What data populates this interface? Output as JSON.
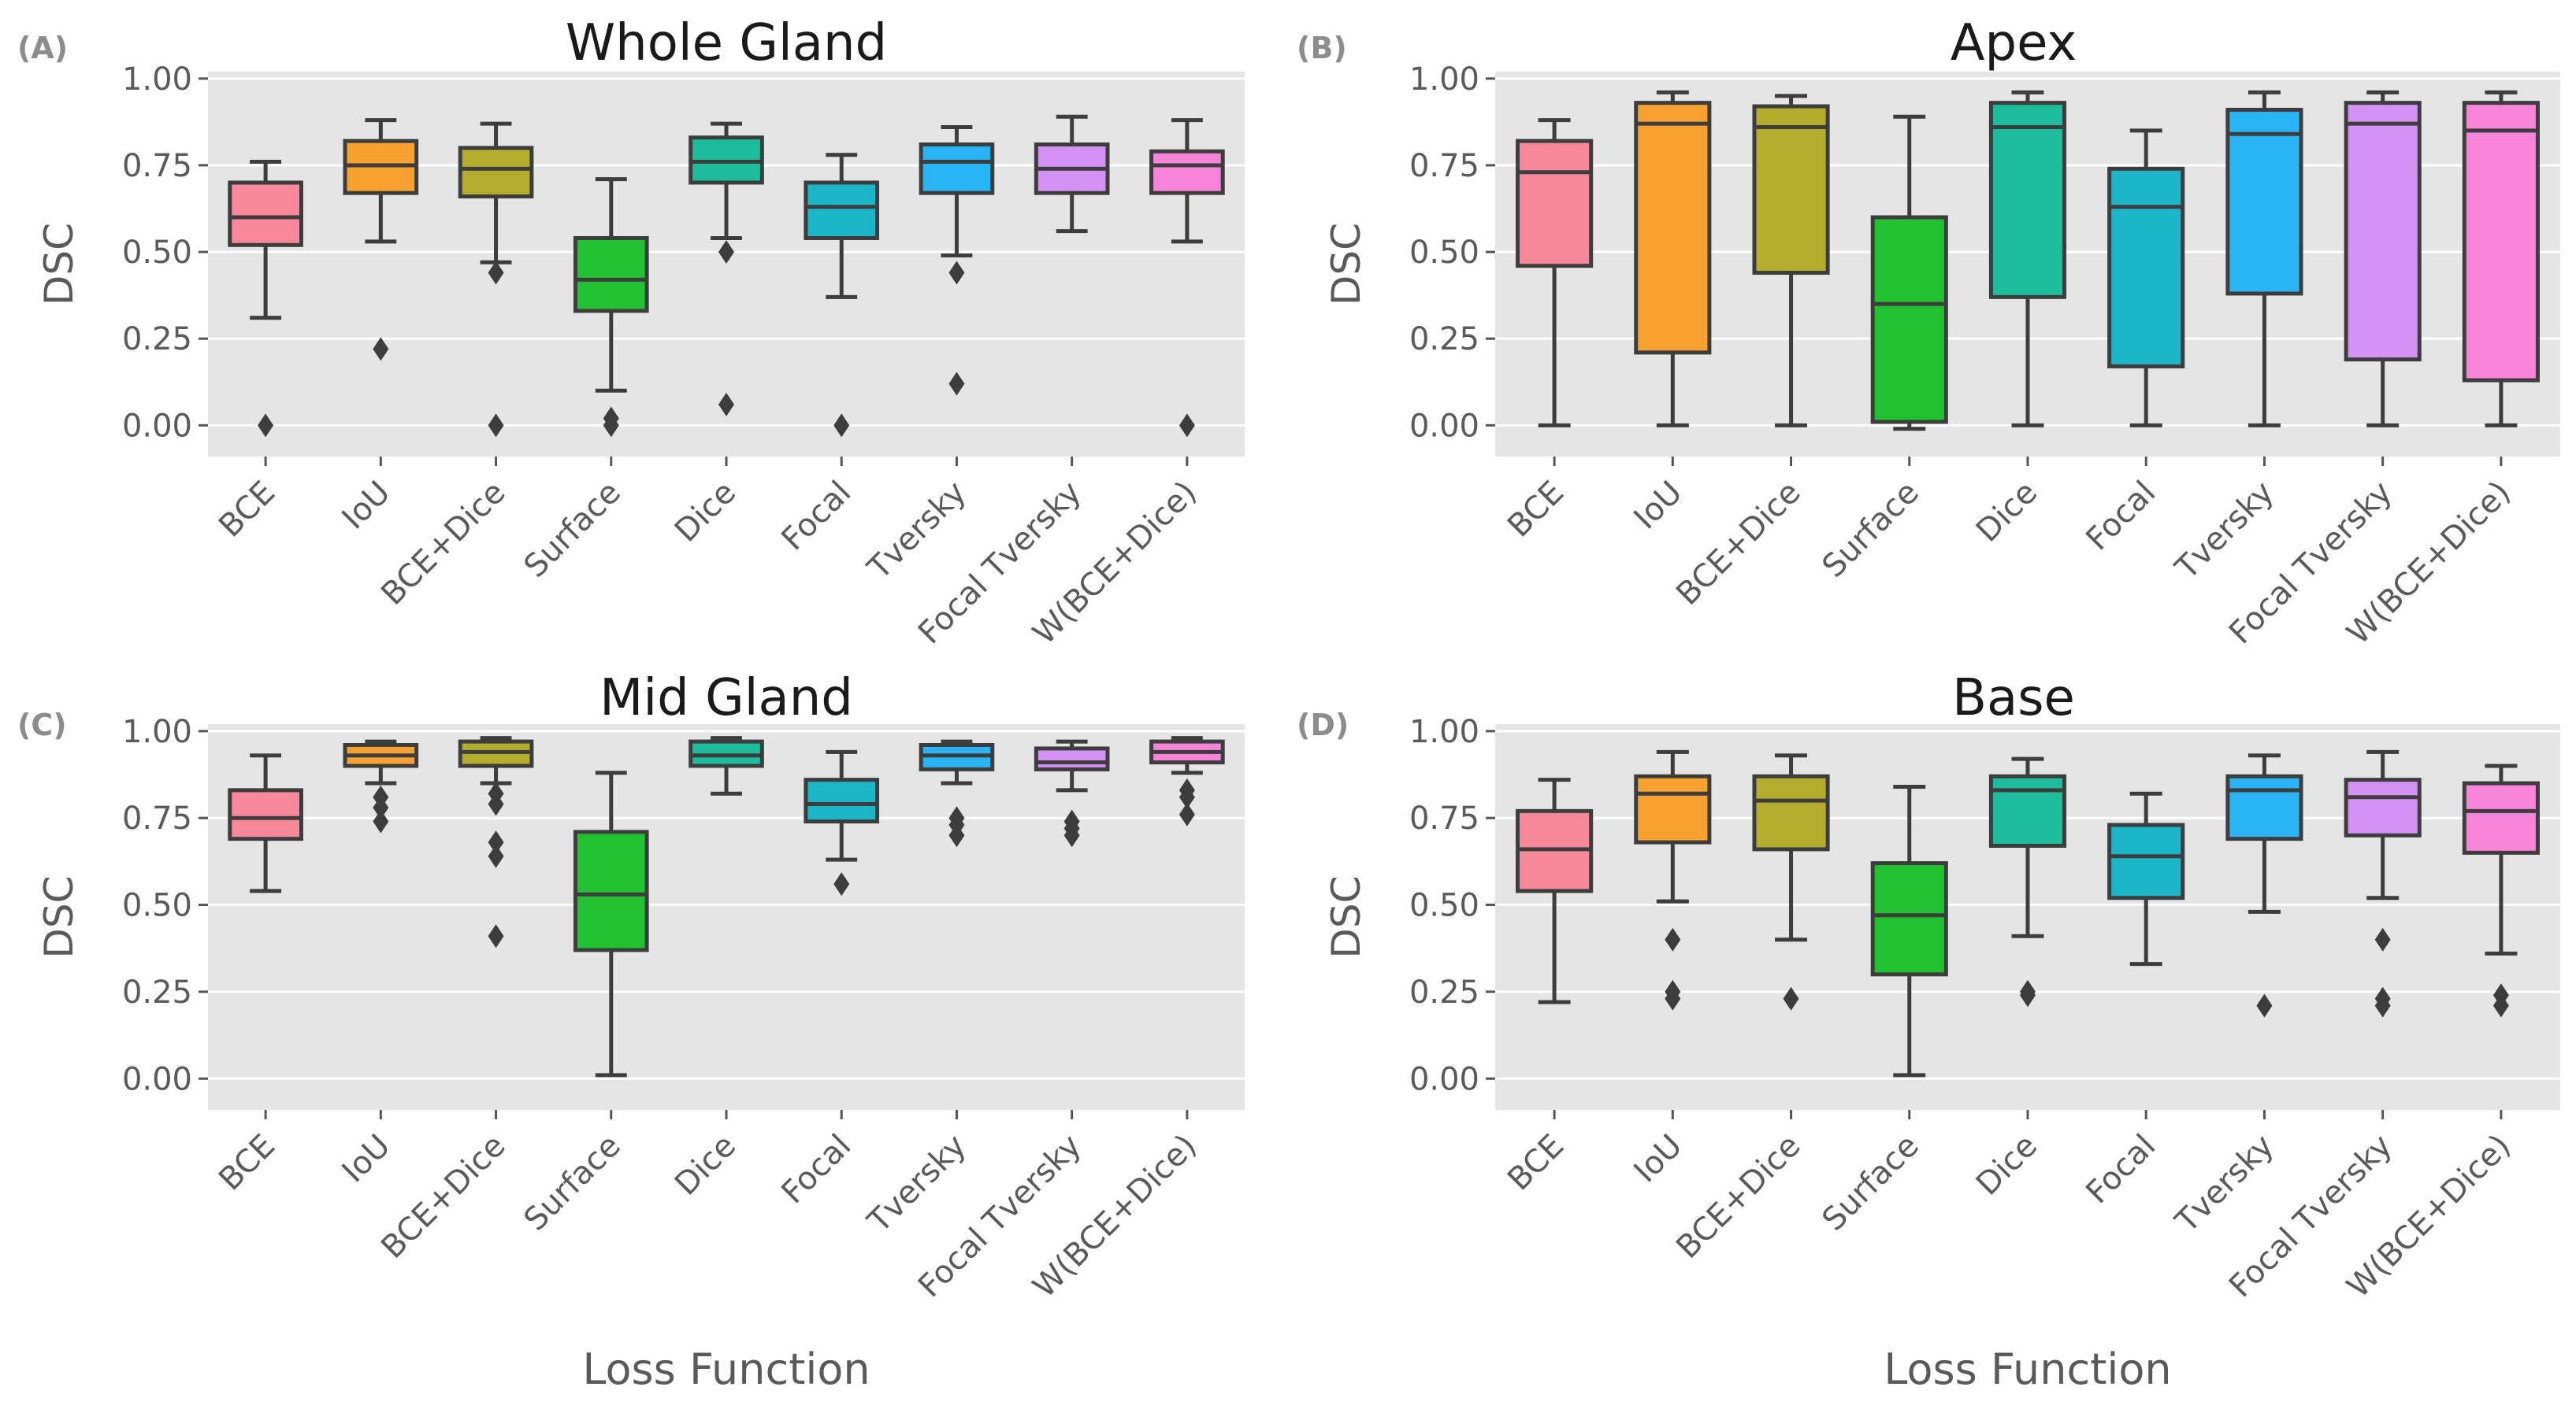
{
  "figure": {
    "xlabel": "Loss Function",
    "ylabel": "DSC"
  },
  "chart_data": [
    {
      "type": "box",
      "letter": "(A)",
      "title": "Whole Gland",
      "ylabel": "DSC",
      "xlabel": "",
      "ylim": [
        -0.09,
        1.02
      ],
      "yticks": [
        "0.00",
        "0.25",
        "0.50",
        "0.75",
        "1.00"
      ],
      "ytick_values": [
        0,
        0.25,
        0.5,
        0.75,
        1.0
      ],
      "grid": true,
      "categories": [
        "BCE",
        "IoU",
        "BCE+Dice",
        "Surface",
        "Dice",
        "Focal",
        "Tversky",
        "Focal Tversky",
        "W(BCE+Dice)"
      ],
      "colors": [
        "#f9889b",
        "#f6a130",
        "#b4ac2c",
        "#21c12f",
        "#1dbc9c",
        "#1cb6c9",
        "#28b4f5",
        "#d493f4",
        "#f685d9"
      ],
      "boxes": [
        {
          "whislo": 0.31,
          "q1": 0.52,
          "med": 0.6,
          "q3": 0.7,
          "whishi": 0.76,
          "fliers": [
            0.0
          ]
        },
        {
          "whislo": 0.53,
          "q1": 0.67,
          "med": 0.75,
          "q3": 0.82,
          "whishi": 0.88,
          "fliers": [
            0.22
          ]
        },
        {
          "whislo": 0.47,
          "q1": 0.66,
          "med": 0.74,
          "q3": 0.8,
          "whishi": 0.87,
          "fliers": [
            0.44,
            0.0
          ]
        },
        {
          "whislo": 0.1,
          "q1": 0.33,
          "med": 0.42,
          "q3": 0.54,
          "whishi": 0.71,
          "fliers": [
            0.02,
            0.0
          ]
        },
        {
          "whislo": 0.54,
          "q1": 0.7,
          "med": 0.76,
          "q3": 0.83,
          "whishi": 0.87,
          "fliers": [
            0.5,
            0.06
          ]
        },
        {
          "whislo": 0.37,
          "q1": 0.54,
          "med": 0.63,
          "q3": 0.7,
          "whishi": 0.78,
          "fliers": [
            0.0
          ]
        },
        {
          "whislo": 0.49,
          "q1": 0.67,
          "med": 0.76,
          "q3": 0.81,
          "whishi": 0.86,
          "fliers": [
            0.44,
            0.12
          ]
        },
        {
          "whislo": 0.56,
          "q1": 0.67,
          "med": 0.74,
          "q3": 0.81,
          "whishi": 0.89,
          "fliers": []
        },
        {
          "whislo": 0.53,
          "q1": 0.67,
          "med": 0.75,
          "q3": 0.79,
          "whishi": 0.88,
          "fliers": [
            0.0
          ]
        }
      ]
    },
    {
      "type": "box",
      "letter": "(B)",
      "title": "Apex",
      "ylabel": "DSC",
      "xlabel": "",
      "ylim": [
        -0.09,
        1.02
      ],
      "yticks": [
        "0.00",
        "0.25",
        "0.50",
        "0.75",
        "1.00"
      ],
      "ytick_values": [
        0,
        0.25,
        0.5,
        0.75,
        1.0
      ],
      "grid": true,
      "categories": [
        "BCE",
        "IoU",
        "BCE+Dice",
        "Surface",
        "Dice",
        "Focal",
        "Tversky",
        "Focal Tversky",
        "W(BCE+Dice)"
      ],
      "colors": [
        "#f9889b",
        "#f6a130",
        "#b4ac2c",
        "#21c12f",
        "#1dbc9c",
        "#1cb6c9",
        "#28b4f5",
        "#d493f4",
        "#f685d9"
      ],
      "boxes": [
        {
          "whislo": 0.0,
          "q1": 0.46,
          "med": 0.73,
          "q3": 0.82,
          "whishi": 0.88,
          "fliers": []
        },
        {
          "whislo": 0.0,
          "q1": 0.21,
          "med": 0.87,
          "q3": 0.93,
          "whishi": 0.96,
          "fliers": []
        },
        {
          "whislo": 0.0,
          "q1": 0.44,
          "med": 0.86,
          "q3": 0.92,
          "whishi": 0.95,
          "fliers": []
        },
        {
          "whislo": -0.01,
          "q1": 0.01,
          "med": 0.35,
          "q3": 0.6,
          "whishi": 0.89,
          "fliers": []
        },
        {
          "whislo": 0.0,
          "q1": 0.37,
          "med": 0.86,
          "q3": 0.93,
          "whishi": 0.96,
          "fliers": []
        },
        {
          "whislo": 0.0,
          "q1": 0.17,
          "med": 0.63,
          "q3": 0.74,
          "whishi": 0.85,
          "fliers": []
        },
        {
          "whislo": 0.0,
          "q1": 0.38,
          "med": 0.84,
          "q3": 0.91,
          "whishi": 0.96,
          "fliers": []
        },
        {
          "whislo": 0.0,
          "q1": 0.19,
          "med": 0.87,
          "q3": 0.93,
          "whishi": 0.96,
          "fliers": []
        },
        {
          "whislo": 0.0,
          "q1": 0.13,
          "med": 0.85,
          "q3": 0.93,
          "whishi": 0.96,
          "fliers": []
        }
      ]
    },
    {
      "type": "box",
      "letter": "(C)",
      "title": "Mid Gland",
      "ylabel": "DSC",
      "xlabel": "Loss Function",
      "ylim": [
        -0.09,
        1.02
      ],
      "yticks": [
        "0.00",
        "0.25",
        "0.50",
        "0.75",
        "1.00"
      ],
      "ytick_values": [
        0,
        0.25,
        0.5,
        0.75,
        1.0
      ],
      "grid": true,
      "categories": [
        "BCE",
        "IoU",
        "BCE+Dice",
        "Surface",
        "Dice",
        "Focal",
        "Tversky",
        "Focal Tversky",
        "W(BCE+Dice)"
      ],
      "colors": [
        "#f9889b",
        "#f6a130",
        "#b4ac2c",
        "#21c12f",
        "#1dbc9c",
        "#1cb6c9",
        "#28b4f5",
        "#d493f4",
        "#f685d9"
      ],
      "boxes": [
        {
          "whislo": 0.54,
          "q1": 0.69,
          "med": 0.75,
          "q3": 0.83,
          "whishi": 0.93,
          "fliers": []
        },
        {
          "whislo": 0.85,
          "q1": 0.9,
          "med": 0.93,
          "q3": 0.96,
          "whishi": 0.97,
          "fliers": [
            0.81,
            0.78,
            0.74
          ]
        },
        {
          "whislo": 0.85,
          "q1": 0.9,
          "med": 0.94,
          "q3": 0.97,
          "whishi": 0.98,
          "fliers": [
            0.82,
            0.79,
            0.68,
            0.64,
            0.41
          ]
        },
        {
          "whislo": 0.01,
          "q1": 0.37,
          "med": 0.53,
          "q3": 0.71,
          "whishi": 0.88,
          "fliers": []
        },
        {
          "whislo": 0.82,
          "q1": 0.9,
          "med": 0.93,
          "q3": 0.97,
          "whishi": 0.98,
          "fliers": []
        },
        {
          "whislo": 0.63,
          "q1": 0.74,
          "med": 0.79,
          "q3": 0.86,
          "whishi": 0.94,
          "fliers": [
            0.56
          ]
        },
        {
          "whislo": 0.85,
          "q1": 0.89,
          "med": 0.93,
          "q3": 0.96,
          "whishi": 0.97,
          "fliers": [
            0.75,
            0.73,
            0.7
          ]
        },
        {
          "whislo": 0.83,
          "q1": 0.89,
          "med": 0.91,
          "q3": 0.95,
          "whishi": 0.97,
          "fliers": [
            0.74,
            0.72,
            0.7
          ]
        },
        {
          "whislo": 0.88,
          "q1": 0.91,
          "med": 0.94,
          "q3": 0.97,
          "whishi": 0.98,
          "fliers": [
            0.83,
            0.81,
            0.76
          ]
        }
      ]
    },
    {
      "type": "box",
      "letter": "(D)",
      "title": "Base",
      "ylabel": "DSC",
      "xlabel": "Loss Function",
      "ylim": [
        -0.09,
        1.02
      ],
      "yticks": [
        "0.00",
        "0.25",
        "0.50",
        "0.75",
        "1.00"
      ],
      "ytick_values": [
        0,
        0.25,
        0.5,
        0.75,
        1.0
      ],
      "grid": true,
      "categories": [
        "BCE",
        "IoU",
        "BCE+Dice",
        "Surface",
        "Dice",
        "Focal",
        "Tversky",
        "Focal Tversky",
        "W(BCE+Dice)"
      ],
      "colors": [
        "#f9889b",
        "#f6a130",
        "#b4ac2c",
        "#21c12f",
        "#1dbc9c",
        "#1cb6c9",
        "#28b4f5",
        "#d493f4",
        "#f685d9"
      ],
      "boxes": [
        {
          "whislo": 0.22,
          "q1": 0.54,
          "med": 0.66,
          "q3": 0.77,
          "whishi": 0.86,
          "fliers": []
        },
        {
          "whislo": 0.51,
          "q1": 0.68,
          "med": 0.82,
          "q3": 0.87,
          "whishi": 0.94,
          "fliers": [
            0.4,
            0.25,
            0.23
          ]
        },
        {
          "whislo": 0.4,
          "q1": 0.66,
          "med": 0.8,
          "q3": 0.87,
          "whishi": 0.93,
          "fliers": [
            0.23
          ]
        },
        {
          "whislo": 0.01,
          "q1": 0.3,
          "med": 0.47,
          "q3": 0.62,
          "whishi": 0.84,
          "fliers": []
        },
        {
          "whislo": 0.41,
          "q1": 0.67,
          "med": 0.83,
          "q3": 0.87,
          "whishi": 0.92,
          "fliers": [
            0.25,
            0.24
          ]
        },
        {
          "whislo": 0.33,
          "q1": 0.52,
          "med": 0.64,
          "q3": 0.73,
          "whishi": 0.82,
          "fliers": []
        },
        {
          "whislo": 0.48,
          "q1": 0.69,
          "med": 0.83,
          "q3": 0.87,
          "whishi": 0.93,
          "fliers": [
            0.21
          ]
        },
        {
          "whislo": 0.52,
          "q1": 0.7,
          "med": 0.81,
          "q3": 0.86,
          "whishi": 0.94,
          "fliers": [
            0.4,
            0.23,
            0.21
          ]
        },
        {
          "whislo": 0.36,
          "q1": 0.65,
          "med": 0.77,
          "q3": 0.85,
          "whishi": 0.9,
          "fliers": [
            0.24,
            0.21
          ]
        }
      ]
    }
  ]
}
